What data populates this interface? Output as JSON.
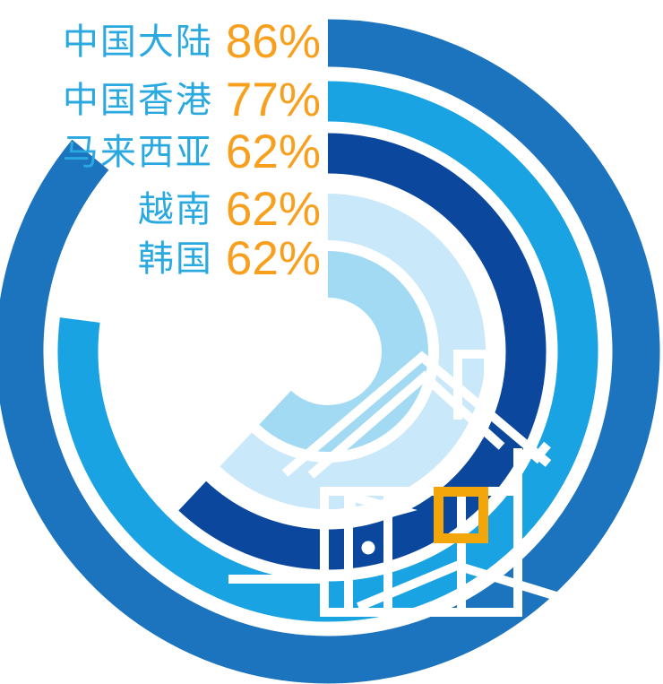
{
  "chart_data": {
    "type": "radial_progress_rings",
    "title": "",
    "unit": "%",
    "categories": [
      "中国大陆",
      "中国香港",
      "马来西亚",
      "越南",
      "韩国"
    ],
    "values": [
      86,
      77,
      62,
      62,
      62
    ],
    "start_angle_deg": 0,
    "direction": "clockwise",
    "legend_position": "top-left",
    "rows": [
      {
        "label": "中国大陆",
        "value": 86,
        "display": "86%",
        "color": "#1C74BE"
      },
      {
        "label": "中国香港",
        "value": 77,
        "display": "77%",
        "color": "#1AA3E2"
      },
      {
        "label": "马来西亚",
        "value": 62,
        "display": "62%",
        "color": "#0B479C"
      },
      {
        "label": "越南",
        "value": 62,
        "display": "62%",
        "color": "#C9E8FA"
      },
      {
        "label": "韩国",
        "value": 62,
        "display": "62%",
        "color": "#A3DAF3"
      }
    ]
  },
  "colors": {
    "label_text": "#2AA9E0",
    "value_text": "#F8A01E",
    "window_accent": "#F2A60A",
    "house_line": "#FFFFFF",
    "background": "#FFFFFF"
  },
  "decoration": {
    "center_icon": "house-outline-icon"
  }
}
